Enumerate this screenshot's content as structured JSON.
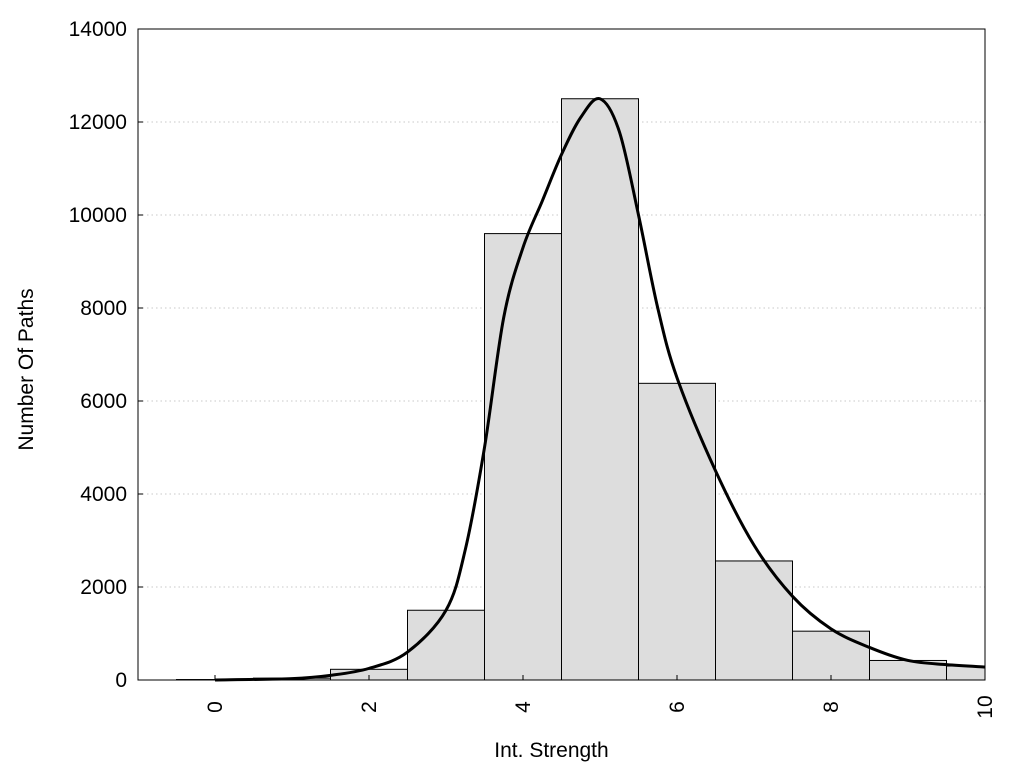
{
  "chart_data": {
    "type": "bar",
    "title": "",
    "xlabel": "Int. Strength",
    "ylabel": "Number Of Paths",
    "xlim": [
      -1,
      10
    ],
    "ylim": [
      0,
      14000
    ],
    "x_ticks": [
      "0",
      "2",
      "4",
      "6",
      "8",
      "10"
    ],
    "y_ticks": [
      "0",
      "2000",
      "4000",
      "6000",
      "8000",
      "10000",
      "12000",
      "14000"
    ],
    "grid": "horizontal-dotted",
    "legend": "none",
    "bar_color": "#dddddd",
    "edge_color": "#000000",
    "bins": [
      {
        "x": 0,
        "value": 10
      },
      {
        "x": 1,
        "value": 40
      },
      {
        "x": 2,
        "value": 230
      },
      {
        "x": 3,
        "value": 1500
      },
      {
        "x": 4,
        "value": 9600
      },
      {
        "x": 5,
        "value": 12500
      },
      {
        "x": 6,
        "value": 6380
      },
      {
        "x": 7,
        "value": 2560
      },
      {
        "x": 8,
        "value": 1050
      },
      {
        "x": 9,
        "value": 420
      },
      {
        "x": 10,
        "value": 300
      }
    ],
    "series": [
      {
        "type": "line",
        "color": "#000000",
        "x": [
          0,
          1,
          1.5,
          2,
          2.5,
          3,
          3.25,
          3.5,
          3.75,
          4,
          4.25,
          4.5,
          4.75,
          5,
          5.25,
          5.5,
          5.75,
          6,
          6.5,
          7,
          7.5,
          8,
          8.5,
          9,
          9.5,
          10
        ],
        "y": [
          0,
          30,
          100,
          250,
          600,
          1500,
          2800,
          5000,
          7800,
          9300,
          10300,
          11300,
          12100,
          12500,
          11800,
          10000,
          8000,
          6500,
          4500,
          2900,
          1800,
          1100,
          700,
          420,
          330,
          280
        ]
      }
    ]
  }
}
